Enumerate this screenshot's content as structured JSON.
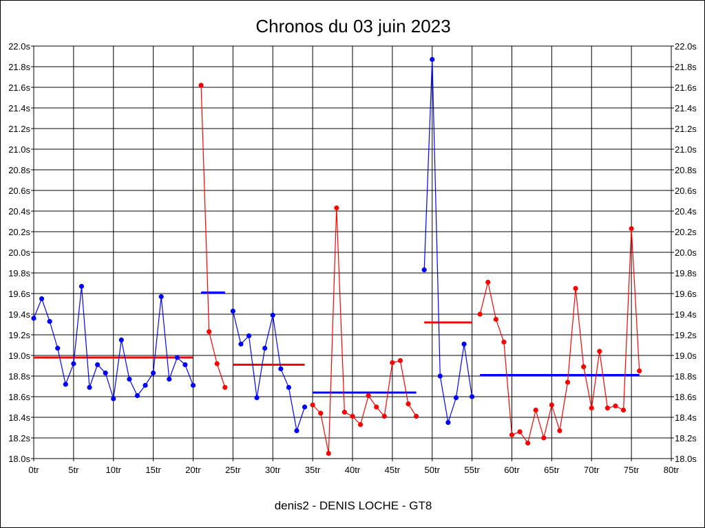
{
  "chart_data": {
    "type": "line",
    "title": "Chronos du 03 juin 2023",
    "xlabel": "denis2 - DENIS LOCHE - GT8",
    "ylabel": "",
    "xlim": [
      0,
      80
    ],
    "ylim": [
      18.0,
      22.0
    ],
    "x_ticks": [
      "0tr",
      "5tr",
      "10tr",
      "15tr",
      "20tr",
      "25tr",
      "30tr",
      "35tr",
      "40tr",
      "45tr",
      "50tr",
      "55tr",
      "60tr",
      "65tr",
      "70tr",
      "75tr",
      "80tr"
    ],
    "y_ticks": [
      "18.0s",
      "18.2s",
      "18.4s",
      "18.6s",
      "18.8s",
      "19.0s",
      "19.2s",
      "19.4s",
      "19.6s",
      "19.8s",
      "20.0s",
      "20.2s",
      "20.4s",
      "20.6s",
      "20.8s",
      "21.0s",
      "21.2s",
      "21.4s",
      "21.6s",
      "21.8s",
      "22.0s"
    ],
    "grid": true,
    "colors": {
      "blue": "#0000ff",
      "red": "#ff0000"
    },
    "series": [
      {
        "color": "#0000ff",
        "start_lap": 0,
        "values": [
          19.36,
          19.55,
          19.33,
          19.07,
          18.72,
          18.92,
          19.67,
          18.69,
          18.91,
          18.83,
          18.58,
          19.15,
          18.77,
          18.61,
          18.71,
          18.83,
          19.57,
          18.77,
          18.98,
          18.91,
          18.71
        ],
        "average": 18.98,
        "average_color": "#ff0000"
      },
      {
        "color": "#ff0000",
        "start_lap": 21,
        "values": [
          21.62,
          19.23,
          18.92,
          18.69
        ],
        "average": 19.61,
        "average_color": "#0000ff"
      },
      {
        "color": "#0000ff",
        "start_lap": 25,
        "values": [
          19.43,
          19.11,
          19.19,
          18.59,
          19.07,
          19.39,
          18.87,
          18.69,
          18.27,
          18.5
        ],
        "average": 18.91,
        "average_color": "#ff0000"
      },
      {
        "color": "#ff0000",
        "start_lap": 35,
        "values": [
          18.52,
          18.44,
          18.05,
          20.43,
          18.45,
          18.41,
          18.33,
          18.61,
          18.5,
          18.41,
          18.93,
          18.95,
          18.53,
          18.41
        ],
        "average": 18.64,
        "average_color": "#0000ff"
      },
      {
        "color": "#0000ff",
        "start_lap": 49,
        "values": [
          19.83,
          21.87,
          18.8,
          18.35,
          18.59,
          19.11,
          18.6
        ],
        "average": 19.32,
        "average_color": "#ff0000"
      },
      {
        "color": "#ff0000",
        "start_lap": 56,
        "values": [
          19.4,
          19.71,
          19.35,
          19.13,
          18.23,
          18.26,
          18.15,
          18.47,
          18.2,
          18.52,
          18.27,
          18.74,
          19.65,
          18.89,
          18.49,
          19.04,
          18.49,
          18.51,
          18.47,
          20.23,
          18.85
        ],
        "average": 18.81,
        "average_color": "#0000ff"
      }
    ]
  }
}
